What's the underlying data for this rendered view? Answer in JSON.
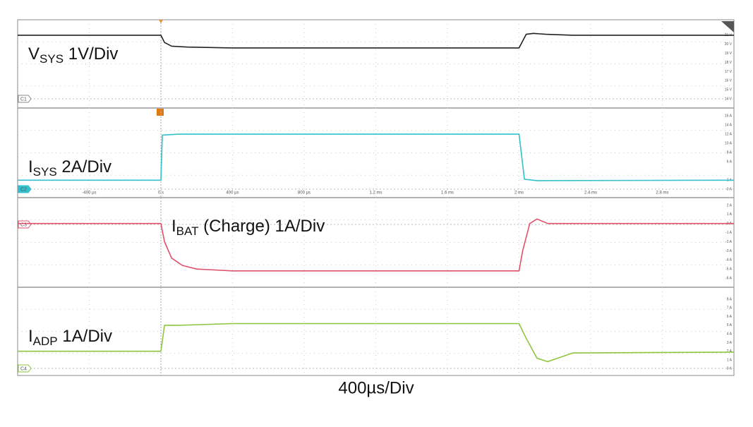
{
  "chart_data": [
    {
      "type": "line",
      "label": {
        "main": "V",
        "sub": "SYS",
        "rest": " 1V/Div"
      },
      "channel": "C1",
      "color": "#222222",
      "xlim": [
        -800,
        3200
      ],
      "ylim": [
        13,
        22.7
      ],
      "yticks": [
        {
          "value": 21,
          "label": "21 V"
        },
        {
          "value": 20,
          "label": "20 V"
        },
        {
          "value": 19,
          "label": "19 V"
        },
        {
          "value": 18,
          "label": "18 V"
        },
        {
          "value": 17,
          "label": "17 V"
        },
        {
          "value": 16,
          "label": "16 V"
        },
        {
          "value": 15,
          "label": "15 V"
        },
        {
          "value": 14,
          "label": "14 V"
        }
      ],
      "x": [
        -800,
        0,
        20,
        60,
        150,
        400,
        1000,
        1600,
        2000,
        2040,
        2080,
        2150,
        2300,
        3200
      ],
      "values": [
        21,
        21,
        20.2,
        19.8,
        19.7,
        19.6,
        19.6,
        19.6,
        19.6,
        21.1,
        21.2,
        21.1,
        21,
        21
      ]
    },
    {
      "type": "line",
      "label": {
        "main": "I",
        "sub": "SYS",
        "rest": " 2A/Div"
      },
      "channel": "C2",
      "color": "#33c0cc",
      "xlim": [
        -800,
        3200
      ],
      "ylim": [
        -1.8,
        17.7
      ],
      "yticks": [
        {
          "value": 16,
          "label": "16 A"
        },
        {
          "value": 14,
          "label": "14 A"
        },
        {
          "value": 12,
          "label": "12 A"
        },
        {
          "value": 10,
          "label": "10 A"
        },
        {
          "value": 8,
          "label": "8 A"
        },
        {
          "value": 6,
          "label": "6 A"
        },
        {
          "value": 2,
          "label": "2 A"
        },
        {
          "value": 0,
          "label": "0 A"
        }
      ],
      "xticks": [
        {
          "value": -400,
          "label": "-400 µs"
        },
        {
          "value": 0,
          "label": "0 s"
        },
        {
          "value": 400,
          "label": "400 µs"
        },
        {
          "value": 800,
          "label": "800 µs"
        },
        {
          "value": 1200,
          "label": "1.2 ms"
        },
        {
          "value": 1600,
          "label": "1.6 ms"
        },
        {
          "value": 2000,
          "label": "2 ms"
        },
        {
          "value": 2400,
          "label": "2.4 ms"
        },
        {
          "value": 2800,
          "label": "2.8 ms"
        }
      ],
      "x": [
        -800,
        0,
        8,
        100,
        2000,
        2030,
        2100,
        3200
      ],
      "values": [
        2,
        2,
        11.8,
        12,
        12,
        2.2,
        1.9,
        2
      ]
    },
    {
      "type": "line",
      "label": {
        "main": "I",
        "sub": "BAT",
        "rest": " (Charge) 1A/Div"
      },
      "channel": "C3",
      "color": "#e0506a",
      "xlim": [
        -800,
        3200
      ],
      "ylim": [
        -7,
        2.85
      ],
      "yticks": [
        {
          "value": 2,
          "label": "2 A"
        },
        {
          "value": 1,
          "label": "1 A"
        },
        {
          "value": 0,
          "label": "0 A"
        },
        {
          "value": -1,
          "label": "-1 A"
        },
        {
          "value": -2,
          "label": "-2 A"
        },
        {
          "value": -3,
          "label": "-3 A"
        },
        {
          "value": -4,
          "label": "-4 A"
        },
        {
          "value": -5,
          "label": "-5 A"
        },
        {
          "value": -6,
          "label": "-6 A"
        }
      ],
      "x": [
        -800,
        0,
        20,
        60,
        120,
        200,
        300,
        400,
        2000,
        2020,
        2060,
        2100,
        2160,
        3200
      ],
      "values": [
        0,
        0,
        -2,
        -3.8,
        -4.6,
        -5,
        -5.1,
        -5.2,
        -5.2,
        -3,
        0,
        0.5,
        0,
        0
      ]
    },
    {
      "type": "line",
      "label": {
        "main": "I",
        "sub": "ADP",
        "rest": " 1A/Div"
      },
      "channel": "C4",
      "color": "#8cc63f",
      "xlim": [
        -800,
        3200
      ],
      "ylim": [
        -0.8,
        9.4
      ],
      "xlabel": "400µs/Div",
      "yticks": [
        {
          "value": 8,
          "label": "8 A"
        },
        {
          "value": 7,
          "label": "7 A"
        },
        {
          "value": 6,
          "label": "6 A"
        },
        {
          "value": 5,
          "label": "5 A"
        },
        {
          "value": 4,
          "label": "4 A"
        },
        {
          "value": 3,
          "label": "3 A"
        },
        {
          "value": 2,
          "label": "2 A"
        },
        {
          "value": 1,
          "label": "1 A"
        },
        {
          "value": 0,
          "label": "0 A"
        }
      ],
      "x": [
        -800,
        0,
        20,
        100,
        400,
        2000,
        2040,
        2100,
        2160,
        2300,
        3200
      ],
      "values": [
        2,
        2,
        5,
        5,
        5.2,
        5.2,
        3.5,
        1.2,
        0.8,
        1.8,
        1.9
      ]
    }
  ]
}
